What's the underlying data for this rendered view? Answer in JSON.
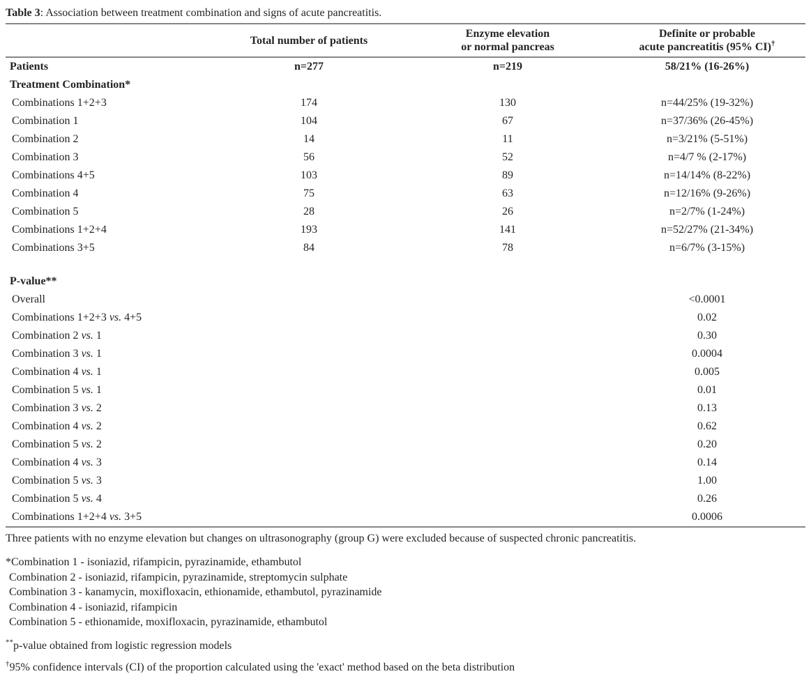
{
  "title": {
    "prefix": "Table 3",
    "rest": ": Association between treatment combination and signs of acute pancreatitis."
  },
  "header": {
    "col2": "Total number of patients",
    "col3_line1": "Enzyme elevation",
    "col3_line2": "or normal pancreas",
    "col4_line1": "Definite or probable",
    "col4_line2": "acute pancreatitis (95% CI)",
    "col4_sup": "†"
  },
  "rows": [
    {
      "bold": true,
      "label_pre": "Patients",
      "c2": "n=277",
      "c3": "n=219",
      "c4": "58/21% (16-26%)"
    },
    {
      "bold": true,
      "label_pre": "Treatment Combination*"
    },
    {
      "label_pre": "Combinations 1+2+3",
      "c2": "174",
      "c3": "130",
      "c4": "n=44/25% (19-32%)"
    },
    {
      "label_pre": "Combination 1",
      "c2": "104",
      "c3": "67",
      "c4": "n=37/36% (26-45%)"
    },
    {
      "label_pre": "Combination 2",
      "c2": "14",
      "c3": "11",
      "c4": "n=3/21% (5-51%)"
    },
    {
      "label_pre": "Combination 3",
      "c2": "56",
      "c3": "52",
      "c4": "n=4/7 % (2-17%)"
    },
    {
      "label_pre": "Combinations 4+5",
      "c2": "103",
      "c3": "89",
      "c4": "n=14/14% (8-22%)"
    },
    {
      "label_pre": "Combination 4",
      "c2": "75",
      "c3": "63",
      "c4": "n=12/16% (9-26%)"
    },
    {
      "label_pre": "Combination 5",
      "c2": "28",
      "c3": "26",
      "c4": "n=2/7% (1-24%)"
    },
    {
      "label_pre": "Combinations 1+2+4",
      "c2": "193",
      "c3": "141",
      "c4": "n=52/27% (21-34%)"
    },
    {
      "label_pre": "Combinations 3+5",
      "c2": "84",
      "c3": "78",
      "c4": "n=6/7% (3-15%)"
    },
    {
      "spacer": true
    },
    {
      "bold": true,
      "label_pre": "P-value**"
    },
    {
      "label_pre": "Overall",
      "c4": "<0.0001"
    },
    {
      "label_pre": "Combinations 1+2+3 ",
      "label_vs": "vs.",
      "label_post": " 4+5",
      "c4": "0.02"
    },
    {
      "label_pre": "Combination 2 ",
      "label_vs": "vs.",
      "label_post": " 1",
      "c4": "0.30"
    },
    {
      "label_pre": "Combination 3 ",
      "label_vs": "vs.",
      "label_post": " 1",
      "c4": "0.0004"
    },
    {
      "label_pre": "Combination 4 ",
      "label_vs": "vs.",
      "label_post": " 1",
      "c4": "0.005"
    },
    {
      "label_pre": "Combination 5 ",
      "label_vs": "vs.",
      "label_post": " 1",
      "c4": "0.01"
    },
    {
      "label_pre": "Combination 3 ",
      "label_vs": "vs.",
      "label_post": " 2",
      "c4": "0.13"
    },
    {
      "label_pre": "Combination 4 ",
      "label_vs": "vs.",
      "label_post": " 2",
      "c4": "0.62"
    },
    {
      "label_pre": "Combination 5 ",
      "label_vs": "vs.",
      "label_post": " 2",
      "c4": "0.20"
    },
    {
      "label_pre": "Combination 4 ",
      "label_vs": "vs.",
      "label_post": " 3",
      "c4": "0.14"
    },
    {
      "label_pre": "Combination 5 ",
      "label_vs": "vs.",
      "label_post": " 3",
      "c4": "1.00"
    },
    {
      "label_pre": "Combination 5 ",
      "label_vs": "vs.",
      "label_post": " 4",
      "c4": "0.26"
    },
    {
      "label_pre": "Combinations 1+2+4 ",
      "label_vs": "vs.",
      "label_post": " 3+5",
      "c4": "0.0006"
    }
  ],
  "footnotes": {
    "exclusion": "Three patients with no enzyme elevation but changes on ultrasonography (group G) were excluded because of suspected chronic pancreatitis.",
    "combos": [
      "*Combination 1 - isoniazid, rifampicin, pyrazinamide, ethambutol",
      "Combination 2 - isoniazid, rifampicin, pyrazinamide, streptomycin sulphate",
      "Combination 3 - kanamycin, moxifloxacin, ethionamide, ethambutol, pyrazinamide",
      "Combination 4 - isoniazid, rifampicin",
      "Combination 5 - ethionamide, moxifloxacin, pyrazinamide, ethambutol"
    ],
    "pvalue_sup": "**",
    "pvalue_text": "p-value obtained from logistic regression models",
    "ci_sup": "†",
    "ci_text": "95% confidence intervals (CI) of the proportion calculated using the 'exact' method based on the beta distribution"
  }
}
